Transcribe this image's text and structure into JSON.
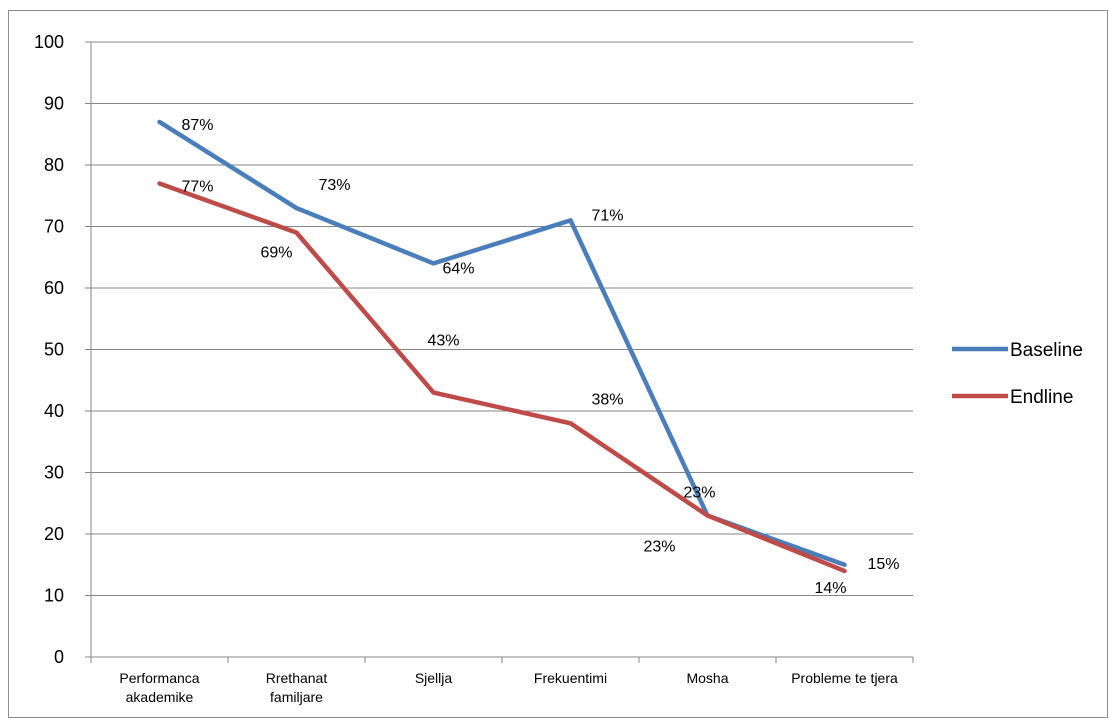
{
  "chart_data": {
    "type": "line",
    "categories": [
      [
        "Performanca",
        "akademike"
      ],
      [
        "Rrethanat",
        "familjare"
      ],
      [
        "Sjellja"
      ],
      [
        "Frekuentimi"
      ],
      [
        "Mosha"
      ],
      [
        "Probleme te tjera"
      ]
    ],
    "series": [
      {
        "name": "Baseline",
        "color": "#4a7ebb",
        "values": [
          87,
          73,
          64,
          71,
          23,
          15
        ],
        "labels": [
          "87%",
          "73%",
          "64%",
          "71%",
          "23%",
          "15%"
        ]
      },
      {
        "name": "Endline",
        "color": "#be4b48",
        "values": [
          77,
          69,
          43,
          38,
          23,
          14
        ],
        "labels": [
          "77%",
          "69%",
          "43%",
          "38%",
          "23%",
          "14%"
        ]
      }
    ],
    "ylim": [
      0,
      100
    ],
    "ytick_step": 10,
    "grid": true,
    "legend_position": "right",
    "title": "",
    "xlabel": "",
    "ylabel": ""
  }
}
